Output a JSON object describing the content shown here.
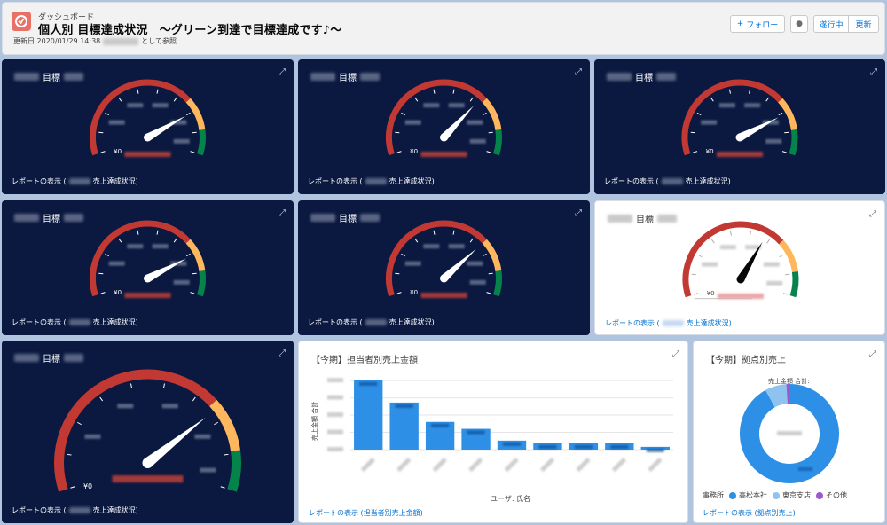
{
  "header": {
    "eyebrow": "ダッシュボード",
    "title": "個人別 目標達成状況　～グリーン到達で目標達成です♪～",
    "updated_prefix": "更新日 2020/01/29 14:38",
    "updated_suffix": "として参照",
    "follow_label": "フォロー",
    "follow_icon": "plus-icon",
    "running_label": "遂行中",
    "refresh_label": "更新",
    "logo_color": "#ea7066"
  },
  "gauge_common": {
    "zero_label": "¥0",
    "title_suffix": "目標",
    "footer_prefix": "レポートの表示 (",
    "footer_suffix": "売上達成状況)",
    "colors": {
      "red": "#c23934",
      "amber": "#ffb75d",
      "green": "#04844b"
    }
  },
  "gauges": [
    {
      "theme": "dark",
      "needle_fraction": 0.78
    },
    {
      "theme": "dark",
      "needle_fraction": 0.7
    },
    {
      "theme": "dark",
      "needle_fraction": 0.79
    },
    {
      "theme": "dark",
      "needle_fraction": 0.79
    },
    {
      "theme": "dark",
      "needle_fraction": 0.72
    },
    {
      "theme": "light",
      "needle_fraction": 0.64
    },
    {
      "theme": "dark",
      "needle_fraction": 0.74
    }
  ],
  "bar_card": {
    "title": "【今期】担当者別売上金額",
    "ylabel": "売上金額 合計",
    "xlabel": "ユーザ: 氏名",
    "footer": "レポートの表示 (担当者別売上金額)"
  },
  "chart_data": {
    "type": "bar",
    "categories": [
      "",
      "",
      "",
      "",
      "",
      "",
      "",
      "",
      ""
    ],
    "values": [
      100,
      68,
      40,
      30,
      13,
      9,
      9,
      9,
      4
    ],
    "ylim": [
      0,
      105
    ],
    "grid": true,
    "color": "#2e8fe6"
  },
  "donut_card": {
    "title": "【今期】拠点別売上",
    "center_title": "売上金額 合計:",
    "legend_title": "事務所",
    "footer": "レポートの表示 (拠点別売上)",
    "slices": [
      {
        "name": "高松本社",
        "value": 92,
        "color": "#2e8fe6"
      },
      {
        "name": "東京支店",
        "value": 7,
        "color": "#8dc3ee"
      },
      {
        "name": "その他",
        "value": 1,
        "color": "#9b59d0"
      }
    ]
  }
}
